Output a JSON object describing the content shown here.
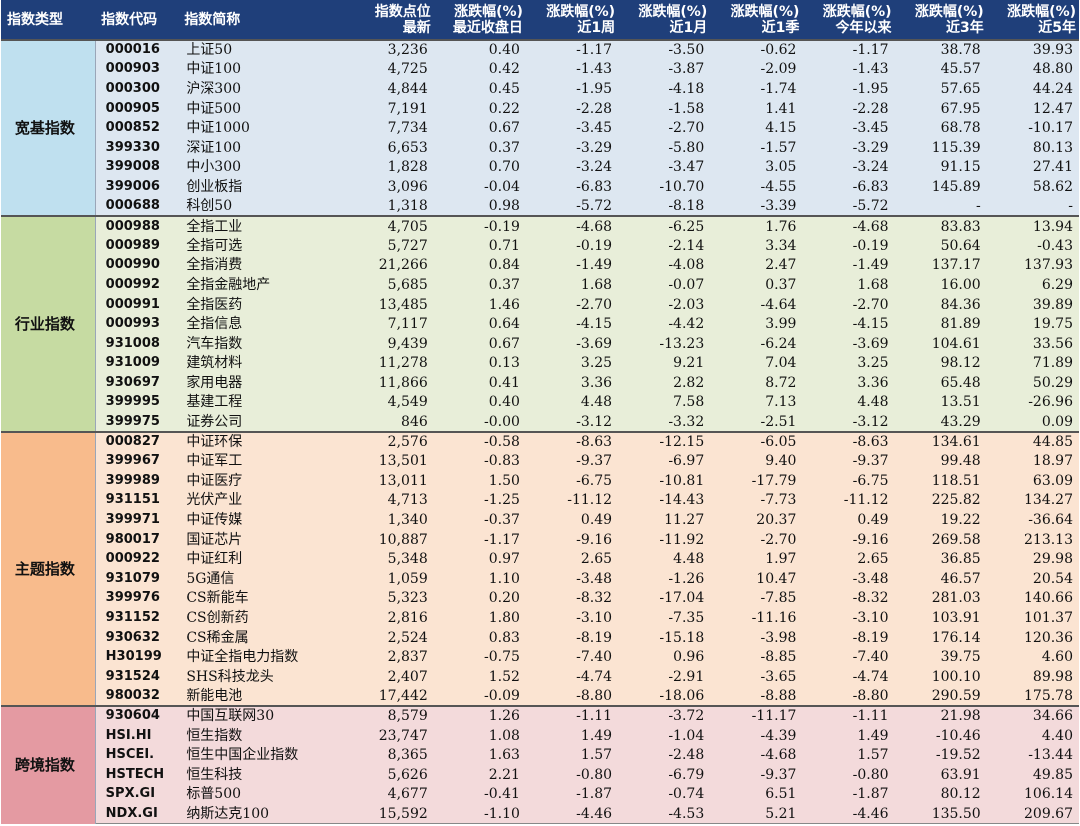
{
  "headers": [
    {
      "line1": "指数类型",
      "line2": ""
    },
    {
      "line1": "指数代码",
      "line2": ""
    },
    {
      "line1": "指数简称",
      "line2": ""
    },
    {
      "line1": "指数点位",
      "line2": "最新"
    },
    {
      "line1": "涨跌幅(%)",
      "line2": "最近收盘日"
    },
    {
      "line1": "涨跌幅(%)",
      "line2": "近1周"
    },
    {
      "line1": "涨跌幅(%)",
      "line2": "近1月"
    },
    {
      "line1": "涨跌幅(%)",
      "line2": "近1季"
    },
    {
      "line1": "涨跌幅(%)",
      "line2": "今年以来"
    },
    {
      "line1": "涨跌幅(%)",
      "line2": "近3年"
    },
    {
      "line1": "涨跌幅(%)",
      "line2": "近5年"
    }
  ],
  "groups": [
    {
      "name": "宽基指数",
      "color": "#dde7f1",
      "cat_color": "#bfe0ef",
      "rows": [
        [
          "000016",
          "上证50",
          "3,236",
          "0.40",
          "-1.17",
          "-3.50",
          "-0.62",
          "-1.17",
          "38.78",
          "39.93"
        ],
        [
          "000903",
          "中证100",
          "4,725",
          "0.42",
          "-1.43",
          "-3.87",
          "-2.09",
          "-1.43",
          "45.57",
          "48.80"
        ],
        [
          "000300",
          "沪深300",
          "4,844",
          "0.45",
          "-1.95",
          "-4.18",
          "-1.74",
          "-1.95",
          "57.65",
          "44.24"
        ],
        [
          "000905",
          "中证500",
          "7,191",
          "0.22",
          "-2.28",
          "-1.58",
          "1.41",
          "-2.28",
          "67.95",
          "12.47"
        ],
        [
          "000852",
          "中证1000",
          "7,734",
          "0.67",
          "-3.45",
          "-2.70",
          "4.15",
          "-3.45",
          "68.78",
          "-10.17"
        ],
        [
          "399330",
          "深证100",
          "6,653",
          "0.37",
          "-3.29",
          "-5.80",
          "-1.57",
          "-3.29",
          "115.39",
          "80.13"
        ],
        [
          "399008",
          "中小300",
          "1,828",
          "0.70",
          "-3.24",
          "-3.47",
          "3.05",
          "-3.24",
          "91.15",
          "27.41"
        ],
        [
          "399006",
          "创业板指",
          "3,096",
          "-0.04",
          "-6.83",
          "-10.70",
          "-4.55",
          "-6.83",
          "145.89",
          "58.62"
        ],
        [
          "000688",
          "科创50",
          "1,318",
          "0.98",
          "-5.72",
          "-8.18",
          "-3.39",
          "-5.72",
          "-",
          "-"
        ]
      ]
    },
    {
      "name": "行业指数",
      "color": "#e8eed9",
      "cat_color": "#c6dba2",
      "rows": [
        [
          "000988",
          "全指工业",
          "4,705",
          "-0.19",
          "-4.68",
          "-6.25",
          "1.76",
          "-4.68",
          "83.83",
          "13.94"
        ],
        [
          "000989",
          "全指可选",
          "5,727",
          "0.71",
          "-0.19",
          "-2.14",
          "3.34",
          "-0.19",
          "50.64",
          "-0.43"
        ],
        [
          "000990",
          "全指消费",
          "21,266",
          "0.84",
          "-1.49",
          "-4.08",
          "2.47",
          "-1.49",
          "137.17",
          "137.93"
        ],
        [
          "000992",
          "全指金融地产",
          "5,685",
          "0.37",
          "1.68",
          "-0.07",
          "0.37",
          "1.68",
          "16.00",
          "6.29"
        ],
        [
          "000991",
          "全指医药",
          "13,485",
          "1.46",
          "-2.70",
          "-2.03",
          "-4.64",
          "-2.70",
          "84.36",
          "39.89"
        ],
        [
          "000993",
          "全指信息",
          "7,117",
          "0.64",
          "-4.15",
          "-4.42",
          "3.99",
          "-4.15",
          "81.89",
          "19.75"
        ],
        [
          "931008",
          "汽车指数",
          "9,439",
          "0.67",
          "-3.69",
          "-13.23",
          "-6.24",
          "-3.69",
          "104.61",
          "33.56"
        ],
        [
          "931009",
          "建筑材料",
          "11,278",
          "0.13",
          "3.25",
          "9.21",
          "7.04",
          "3.25",
          "98.12",
          "71.89"
        ],
        [
          "930697",
          "家用电器",
          "11,866",
          "0.41",
          "3.36",
          "2.82",
          "8.72",
          "3.36",
          "65.48",
          "50.29"
        ],
        [
          "399995",
          "基建工程",
          "4,549",
          "0.40",
          "4.48",
          "7.58",
          "7.13",
          "4.48",
          "13.51",
          "-26.96"
        ],
        [
          "399975",
          "证券公司",
          "846",
          "-0.00",
          "-3.12",
          "-3.32",
          "-2.51",
          "-3.12",
          "43.29",
          "0.09"
        ]
      ]
    },
    {
      "name": "主题指数",
      "color": "#fbe4d2",
      "cat_color": "#f8bb8c",
      "rows": [
        [
          "000827",
          "中证环保",
          "2,576",
          "-0.58",
          "-8.63",
          "-12.15",
          "-6.05",
          "-8.63",
          "134.61",
          "44.85"
        ],
        [
          "399967",
          "中证军工",
          "13,501",
          "-0.83",
          "-9.37",
          "-6.97",
          "9.40",
          "-9.37",
          "99.48",
          "18.97"
        ],
        [
          "399989",
          "中证医疗",
          "13,011",
          "1.50",
          "-6.75",
          "-10.81",
          "-17.79",
          "-6.75",
          "118.51",
          "63.09"
        ],
        [
          "931151",
          "光伏产业",
          "4,713",
          "-1.25",
          "-11.12",
          "-14.43",
          "-7.73",
          "-11.12",
          "225.82",
          "134.27"
        ],
        [
          "399971",
          "中证传媒",
          "1,340",
          "-0.37",
          "0.49",
          "11.27",
          "20.37",
          "0.49",
          "19.22",
          "-36.64"
        ],
        [
          "980017",
          "国证芯片",
          "10,887",
          "-1.17",
          "-9.16",
          "-11.92",
          "-2.70",
          "-9.16",
          "269.58",
          "213.13"
        ],
        [
          "000922",
          "中证红利",
          "5,348",
          "0.97",
          "2.65",
          "4.48",
          "1.97",
          "2.65",
          "36.85",
          "29.98"
        ],
        [
          "931079",
          "5G通信",
          "1,059",
          "1.10",
          "-3.48",
          "-1.26",
          "10.47",
          "-3.48",
          "46.57",
          "20.54"
        ],
        [
          "399976",
          "CS新能车",
          "5,323",
          "0.20",
          "-8.32",
          "-17.04",
          "-7.85",
          "-8.32",
          "281.03",
          "140.66"
        ],
        [
          "931152",
          "CS创新药",
          "2,816",
          "1.80",
          "-3.10",
          "-7.35",
          "-11.16",
          "-3.10",
          "103.91",
          "101.37"
        ],
        [
          "930632",
          "CS稀金属",
          "2,524",
          "0.83",
          "-8.19",
          "-15.18",
          "-3.98",
          "-8.19",
          "176.14",
          "120.36"
        ],
        [
          "H30199",
          "中证全指电力指数",
          "2,837",
          "-0.75",
          "-7.40",
          "0.96",
          "-8.85",
          "-7.40",
          "39.75",
          "4.60"
        ],
        [
          "931524",
          "SHS科技龙头",
          "2,407",
          "1.52",
          "-4.74",
          "-2.91",
          "-3.65",
          "-4.74",
          "100.10",
          "89.98"
        ],
        [
          "980032",
          "新能电池",
          "17,442",
          "-0.09",
          "-8.80",
          "-18.06",
          "-8.88",
          "-8.80",
          "290.59",
          "175.78"
        ]
      ]
    },
    {
      "name": "跨境指数",
      "color": "#f3dadb",
      "cat_color": "#e49aa2",
      "rows": [
        [
          "930604",
          "中国互联网30",
          "8,579",
          "1.26",
          "-1.11",
          "-3.72",
          "-11.17",
          "-1.11",
          "21.98",
          "34.66"
        ],
        [
          "HSI.HI",
          "恒生指数",
          "23,747",
          "1.08",
          "1.49",
          "-1.04",
          "-4.39",
          "1.49",
          "-10.46",
          "4.40"
        ],
        [
          "HSCEI.",
          "恒生中国企业指数",
          "8,365",
          "1.63",
          "1.57",
          "-2.48",
          "-4.68",
          "1.57",
          "-19.52",
          "-13.44"
        ],
        [
          "HSTECH",
          "恒生科技",
          "5,626",
          "2.21",
          "-0.80",
          "-6.79",
          "-9.37",
          "-0.80",
          "63.91",
          "49.85"
        ],
        [
          "SPX.GI",
          "标普500",
          "4,677",
          "-0.41",
          "-1.87",
          "-0.74",
          "6.51",
          "-1.87",
          "80.12",
          "106.14"
        ],
        [
          "NDX.GI",
          "纳斯达克100",
          "15,592",
          "-1.10",
          "-4.46",
          "-4.53",
          "5.21",
          "-4.46",
          "135.50",
          "209.67"
        ]
      ]
    }
  ]
}
